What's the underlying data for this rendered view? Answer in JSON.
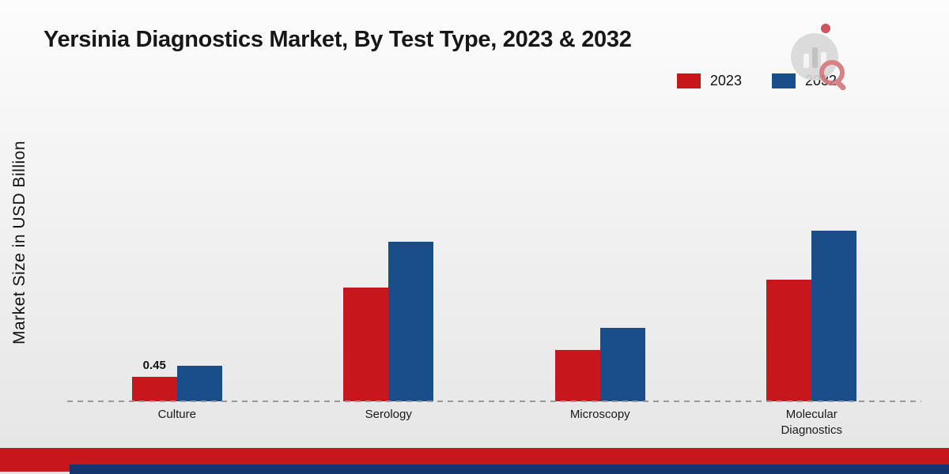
{
  "title": "Yersinia Diagnostics Market, By Test Type, 2023 & 2032",
  "chart_data": {
    "type": "bar",
    "title": "Yersinia Diagnostics Market, By Test Type, 2023 & 2032",
    "categories": [
      "Culture",
      "Serology",
      "Microscopy",
      "Molecular Diagnostics"
    ],
    "series": [
      {
        "name": "2023",
        "color": "#c8161d",
        "values": [
          0.45,
          2.1,
          0.95,
          2.25
        ]
      },
      {
        "name": "2032",
        "color": "#1a4e8a",
        "values": [
          0.65,
          2.95,
          1.35,
          3.15
        ]
      }
    ],
    "xlabel": "",
    "ylabel": "Market Size in USD Billion",
    "ylim": [
      0,
      3.5
    ],
    "grid": false,
    "legend_position": "top-right",
    "data_labels": [
      {
        "category": "Culture",
        "series": "2023",
        "text": "0.45"
      }
    ]
  },
  "colors": {
    "series_2023": "#c8161d",
    "series_2032": "#1a4e8a",
    "footer_red_band": "#c8161d",
    "footer_navy_band": "#16356e",
    "baseline_dash": "#999999"
  }
}
